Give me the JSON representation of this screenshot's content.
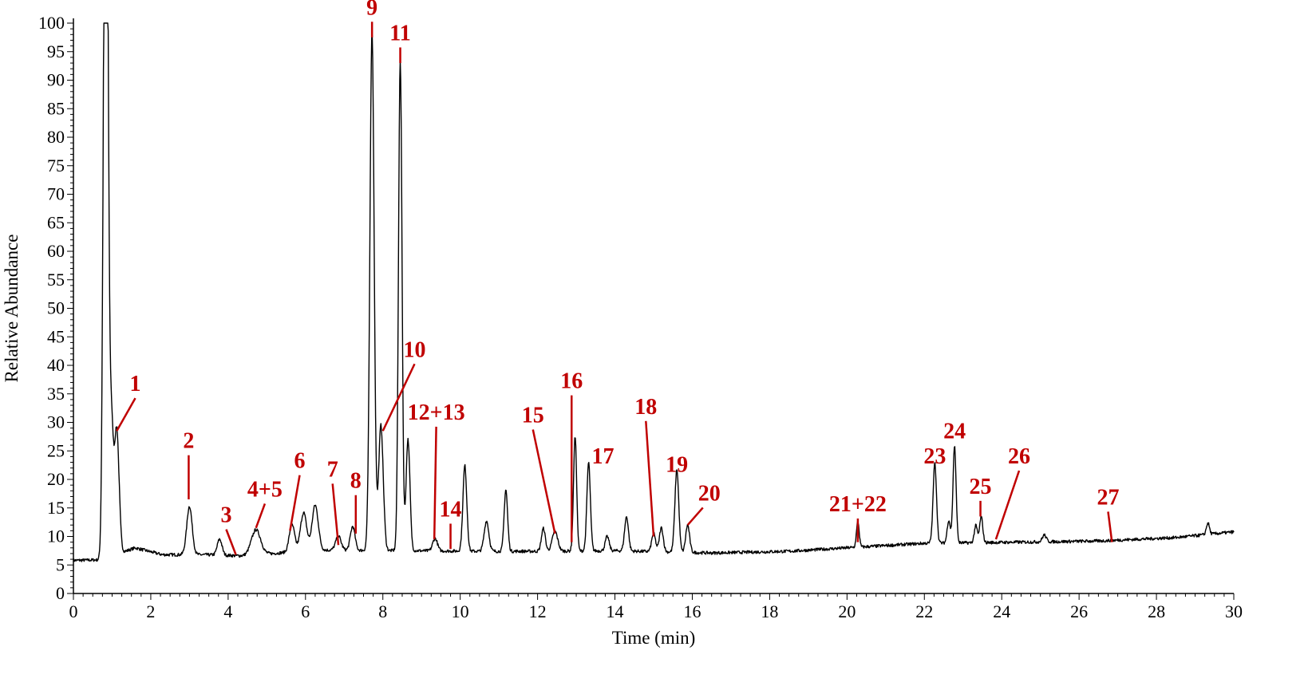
{
  "chart_data": {
    "type": "line",
    "xlabel": "Time (min)",
    "ylabel": "Relative Abundance",
    "xlim": [
      0,
      30
    ],
    "ylim": [
      0,
      100
    ],
    "x_ticks": [
      0,
      2,
      4,
      6,
      8,
      10,
      12,
      14,
      16,
      18,
      20,
      22,
      24,
      26,
      28,
      30
    ],
    "y_ticks": [
      0,
      5,
      10,
      15,
      20,
      25,
      30,
      35,
      40,
      45,
      50,
      55,
      60,
      65,
      70,
      75,
      80,
      85,
      90,
      95,
      100
    ],
    "grid": false,
    "line_color": "#000000",
    "label_color": "#c00000",
    "baseline": [
      [
        0,
        5.8
      ],
      [
        0.7,
        5.9
      ],
      [
        1.6,
        8.0
      ],
      [
        2.3,
        6.8
      ],
      [
        3.4,
        6.8
      ],
      [
        4.4,
        6.6
      ],
      [
        5.5,
        7.2
      ],
      [
        6.5,
        7.6
      ],
      [
        8.8,
        7.5
      ],
      [
        10.5,
        7.4
      ],
      [
        12.0,
        7.4
      ],
      [
        14.0,
        7.5
      ],
      [
        16.5,
        7.1
      ],
      [
        18.5,
        7.4
      ],
      [
        20.5,
        8.2
      ],
      [
        22.0,
        8.8
      ],
      [
        24.5,
        9.0
      ],
      [
        26.5,
        9.2
      ],
      [
        28.5,
        9.8
      ],
      [
        30.0,
        10.8
      ]
    ],
    "peaks": [
      {
        "rt": 0.82,
        "height": 100,
        "width": 0.05
      },
      {
        "rt": 0.86,
        "height": 80,
        "width": 0.05
      },
      {
        "rt": 0.98,
        "height": 22,
        "width": 0.05
      },
      {
        "rt": 1.12,
        "height": 22,
        "width": 0.06
      },
      {
        "rt": 3.0,
        "height": 8.5,
        "width": 0.07
      },
      {
        "rt": 3.78,
        "height": 2.8,
        "width": 0.06
      },
      {
        "rt": 4.72,
        "height": 4.4,
        "width": 0.12
      },
      {
        "rt": 5.65,
        "height": 4.8,
        "width": 0.07
      },
      {
        "rt": 5.95,
        "height": 6.8,
        "width": 0.08
      },
      {
        "rt": 6.25,
        "height": 8.0,
        "width": 0.08
      },
      {
        "rt": 6.85,
        "height": 2.5,
        "width": 0.07
      },
      {
        "rt": 7.22,
        "height": 4.2,
        "width": 0.06
      },
      {
        "rt": 7.72,
        "height": 91,
        "width": 0.055
      },
      {
        "rt": 7.95,
        "height": 22,
        "width": 0.06
      },
      {
        "rt": 8.45,
        "height": 86,
        "width": 0.045
      },
      {
        "rt": 8.65,
        "height": 19.5,
        "width": 0.05
      },
      {
        "rt": 9.35,
        "height": 2.2,
        "width": 0.06
      },
      {
        "rt": 10.12,
        "height": 15,
        "width": 0.05
      },
      {
        "rt": 10.68,
        "height": 5.3,
        "width": 0.06
      },
      {
        "rt": 11.18,
        "height": 10.8,
        "width": 0.045
      },
      {
        "rt": 12.15,
        "height": 4.0,
        "width": 0.05
      },
      {
        "rt": 12.45,
        "height": 3.5,
        "width": 0.07
      },
      {
        "rt": 12.97,
        "height": 20,
        "width": 0.04
      },
      {
        "rt": 13.32,
        "height": 15.5,
        "width": 0.045
      },
      {
        "rt": 13.8,
        "height": 2.5,
        "width": 0.05
      },
      {
        "rt": 14.3,
        "height": 6.0,
        "width": 0.05
      },
      {
        "rt": 15.0,
        "height": 3.2,
        "width": 0.05
      },
      {
        "rt": 15.2,
        "height": 4.2,
        "width": 0.05
      },
      {
        "rt": 15.6,
        "height": 14.5,
        "width": 0.05
      },
      {
        "rt": 15.88,
        "height": 4.8,
        "width": 0.05
      },
      {
        "rt": 20.28,
        "height": 4.5,
        "width": 0.035
      },
      {
        "rt": 22.27,
        "height": 14.0,
        "width": 0.045
      },
      {
        "rt": 22.63,
        "height": 4.0,
        "width": 0.04
      },
      {
        "rt": 22.78,
        "height": 17.0,
        "width": 0.04
      },
      {
        "rt": 23.33,
        "height": 3.0,
        "width": 0.04
      },
      {
        "rt": 23.47,
        "height": 4.5,
        "width": 0.04
      },
      {
        "rt": 25.1,
        "height": 1.2,
        "width": 0.05
      },
      {
        "rt": 29.33,
        "height": 2.0,
        "width": 0.04
      }
    ],
    "annotations": [
      {
        "label": "1",
        "point": [
          1.12,
          28.5
        ],
        "text_at": [
          1.6,
          35.5
        ],
        "anchor": "middle"
      },
      {
        "label": "2",
        "point": [
          2.98,
          16.5
        ],
        "text_at": [
          2.98,
          25.5
        ],
        "anchor": "middle"
      },
      {
        "label": "3",
        "point": [
          4.2,
          6.8
        ],
        "text_at": [
          3.95,
          12.5
        ],
        "anchor": "middle"
      },
      {
        "label": "4+5",
        "point": [
          4.72,
          11.5
        ],
        "text_at": [
          4.95,
          17.0
        ],
        "anchor": "middle"
      },
      {
        "label": "6",
        "point": [
          5.6,
          11.0
        ],
        "text_at": [
          5.85,
          22.0
        ],
        "anchor": "middle"
      },
      {
        "label": "7",
        "point": [
          6.85,
          8.5
        ],
        "text_at": [
          6.7,
          20.5
        ],
        "anchor": "middle"
      },
      {
        "label": "8",
        "point": [
          7.3,
          10.5
        ],
        "text_at": [
          7.3,
          18.5
        ],
        "anchor": "middle"
      },
      {
        "label": "9",
        "point": [
          7.72,
          97.5
        ],
        "text_at": [
          7.72,
          101.5
        ],
        "anchor": "middle"
      },
      {
        "label": "10",
        "point": [
          8.0,
          28.5
        ],
        "text_at": [
          8.82,
          41.5
        ],
        "anchor": "middle"
      },
      {
        "label": "11",
        "point": [
          8.45,
          93.0
        ],
        "text_at": [
          8.45,
          97.0
        ],
        "anchor": "middle"
      },
      {
        "label": "12+13",
        "point": [
          9.33,
          9.5
        ],
        "text_at": [
          9.38,
          30.5
        ],
        "anchor": "middle"
      },
      {
        "label": "14",
        "point": [
          9.75,
          7.8
        ],
        "text_at": [
          9.75,
          13.5
        ],
        "anchor": "middle"
      },
      {
        "label": "15",
        "point": [
          12.45,
          10.5
        ],
        "text_at": [
          11.88,
          30.0
        ],
        "anchor": "middle"
      },
      {
        "label": "16",
        "point": [
          12.88,
          9.0
        ],
        "text_at": [
          12.88,
          36.0
        ],
        "anchor": "middle"
      },
      {
        "label": "17",
        "point": [
          13.32,
          21.0
        ],
        "text_at": [
          13.4,
          22.8
        ],
        "anchor": "start"
      },
      {
        "label": "18",
        "point": [
          15.0,
          10.0
        ],
        "text_at": [
          14.8,
          31.5
        ],
        "anchor": "middle"
      },
      {
        "label": "19",
        "point": [
          15.6,
          21.0
        ],
        "text_at": [
          15.6,
          21.3
        ],
        "anchor": "middle"
      },
      {
        "label": "20",
        "point": [
          15.88,
          12.0
        ],
        "text_at": [
          16.15,
          16.3
        ],
        "anchor": "start"
      },
      {
        "label": "21+22",
        "point": [
          20.28,
          9.0
        ],
        "text_at": [
          20.28,
          14.4
        ],
        "anchor": "middle"
      },
      {
        "label": "23",
        "point": [
          22.27,
          22.5
        ],
        "text_at": [
          22.27,
          22.8
        ],
        "anchor": "middle"
      },
      {
        "label": "24",
        "point": [
          22.78,
          25.5
        ],
        "text_at": [
          22.78,
          27.2
        ],
        "anchor": "middle"
      },
      {
        "label": "25",
        "point": [
          23.45,
          13.5
        ],
        "text_at": [
          23.45,
          17.5
        ],
        "anchor": "middle"
      },
      {
        "label": "26",
        "point": [
          23.85,
          9.5
        ],
        "text_at": [
          24.45,
          22.8
        ],
        "anchor": "middle"
      },
      {
        "label": "27",
        "point": [
          26.85,
          9.0
        ],
        "text_at": [
          26.75,
          15.6
        ],
        "anchor": "middle"
      }
    ]
  }
}
